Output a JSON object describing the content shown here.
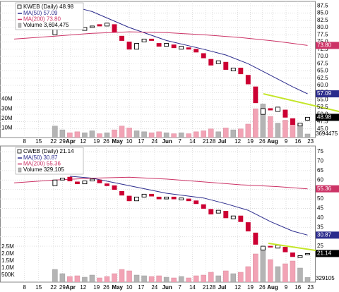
{
  "chart_data": [
    {
      "type": "candlestick",
      "title": "KWEB (Daily) 48.98",
      "volume_name": "Volume 3,694,475",
      "x": [
        5,
        6,
        7,
        8,
        9,
        10,
        11,
        12,
        13,
        14,
        15,
        16,
        17,
        18,
        19,
        20,
        21,
        22,
        23,
        24,
        25,
        26,
        27,
        28,
        29,
        30,
        31,
        32,
        33,
        34,
        35,
        36,
        37,
        38,
        39
      ],
      "open": [
        77.5,
        80.5,
        81.5,
        80,
        79,
        80,
        81,
        80.5,
        81,
        77,
        75,
        72.5,
        75,
        76,
        74.5,
        73.5,
        74,
        72.5,
        73,
        72.5,
        71,
        69,
        67.5,
        68,
        65,
        66,
        63.5,
        59.5,
        50,
        52,
        51,
        51.5,
        48.5,
        46,
        48
      ],
      "close": [
        80.5,
        81,
        80,
        79.5,
        80,
        80.5,
        80.5,
        81.5,
        78.5,
        75.5,
        72.5,
        74.5,
        76,
        75.5,
        73.5,
        74.5,
        73,
        73.5,
        72.5,
        71.5,
        69.5,
        67,
        68.5,
        65.5,
        66,
        64,
        60.5,
        54,
        52,
        51.5,
        52.5,
        49,
        46.5,
        47,
        48.98
      ],
      "volume": [
        12000000,
        8000000,
        5000000,
        6000000,
        5000000,
        7000000,
        4000000,
        5000000,
        8000000,
        12000000,
        10000000,
        7000000,
        6000000,
        5000000,
        6000000,
        5000000,
        4000000,
        5000000,
        4000000,
        6000000,
        7000000,
        9000000,
        6000000,
        10000000,
        8000000,
        9000000,
        14000000,
        30000000,
        35000000,
        22000000,
        15000000,
        18000000,
        20000000,
        14000000,
        3694475
      ],
      "up_color": "#000000",
      "down_color": "#cc0033",
      "volume_color": "#b4b4b4",
      "volume_down_color": "#f2a3b5",
      "series": [
        {
          "name": "MA(50) 57.09",
          "color": "#2b2b8c",
          "x": [
            7,
            10,
            15,
            20,
            25,
            28,
            31,
            34,
            37,
            39
          ],
          "values": [
            87.5,
            85.5,
            80,
            75.5,
            72.5,
            70.5,
            67.5,
            63.5,
            59.5,
            57.09
          ]
        },
        {
          "name": "MA(200) 73.80",
          "color": "#cc3366",
          "x": [
            -0.5,
            5,
            10,
            15,
            20,
            25,
            30,
            35,
            39
          ],
          "values": [
            76,
            77,
            78,
            78.5,
            78.2,
            77.5,
            76.5,
            75.2,
            73.8
          ]
        }
      ],
      "xlim": [
        -0.5,
        40
      ],
      "xticks": [
        {
          "value": 0.9,
          "label": "8"
        },
        {
          "value": 2.8,
          "label": "15"
        },
        {
          "value": 4.8,
          "label": "22"
        },
        {
          "value": 6.0,
          "label": "29"
        },
        {
          "value": 7.1,
          "label": "Apr"
        },
        {
          "value": 8.8,
          "label": "12"
        },
        {
          "value": 10.6,
          "label": "19"
        },
        {
          "value": 11.9,
          "label": "26"
        },
        {
          "value": 13.4,
          "label": "May"
        },
        {
          "value": 15.0,
          "label": "10"
        },
        {
          "value": 16.6,
          "label": "17"
        },
        {
          "value": 18.4,
          "label": "24"
        },
        {
          "value": 20.1,
          "label": "Jun"
        },
        {
          "value": 21.8,
          "label": "7"
        },
        {
          "value": 23.5,
          "label": "14"
        },
        {
          "value": 25.3,
          "label": "21"
        },
        {
          "value": 26.2,
          "label": "28"
        },
        {
          "value": 27.5,
          "label": "Jul"
        },
        {
          "value": 29.6,
          "label": "12"
        },
        {
          "value": 31.3,
          "label": "19"
        },
        {
          "value": 32.9,
          "label": "26"
        },
        {
          "value": 34.3,
          "label": "Aug"
        },
        {
          "value": 36.1,
          "label": "9"
        },
        {
          "value": 37.7,
          "label": "16"
        },
        {
          "value": 39.4,
          "label": "23"
        }
      ],
      "ylim": [
        42,
        89
      ],
      "yticks": [
        87.5,
        {
          "value": 85,
          "label": "85.0"
        },
        82.5,
        {
          "value": 80,
          "label": "80.0"
        },
        77.5,
        {
          "value": 75,
          "label": "75.0"
        },
        72.5,
        {
          "value": 70,
          "label": "70.0"
        },
        67.5,
        {
          "value": 65,
          "label": "65.0"
        },
        62.5,
        {
          "value": 60,
          "label": "60.0"
        },
        57.5,
        {
          "value": 55,
          "label": "55.0"
        },
        52.5,
        {
          "value": 50,
          "label": "50.0"
        },
        47.5,
        {
          "value": 45,
          "label": "45.0"
        }
      ],
      "volume_ylim": [
        0,
        50000000
      ],
      "volume_ticks": [
        {
          "value": 10000000,
          "label": "10M"
        },
        {
          "value": 20000000,
          "label": "20M"
        },
        {
          "value": 30000000,
          "label": "30M"
        },
        {
          "value": 40000000,
          "label": "40M"
        }
      ],
      "side_labels": [
        {
          "value": 73.8,
          "label": "73.80",
          "color": "#cc3366"
        },
        {
          "value": 57.09,
          "label": "57.09",
          "color": "#2b2b8c"
        },
        {
          "value": 48.98,
          "label": "48.98",
          "color": "#000000"
        }
      ],
      "volume_side_label": 3694475,
      "grid": true
    },
    {
      "type": "candlestick",
      "title": "CWEB (Daily) 21.14",
      "volume_name": "Volume 329,105",
      "x": [
        5,
        6,
        7,
        8,
        9,
        10,
        11,
        12,
        13,
        14,
        15,
        16,
        17,
        18,
        19,
        20,
        21,
        22,
        23,
        24,
        25,
        26,
        27,
        28,
        29,
        30,
        31,
        32,
        33,
        34,
        35,
        36,
        37,
        38,
        39
      ],
      "open": [
        57,
        60,
        61.5,
        59,
        58,
        59.5,
        60,
        58,
        57,
        54,
        51.5,
        49,
        51,
        52.5,
        51,
        50,
        51,
        49.5,
        50,
        49,
        47,
        44.5,
        42.5,
        43.5,
        39.5,
        41,
        37.5,
        32,
        23,
        25,
        24,
        24.5,
        21.5,
        19,
        20.5
      ],
      "close": [
        60,
        61,
        59.5,
        58,
        59.5,
        60.5,
        58.5,
        57,
        55,
        52,
        49,
        51,
        52.5,
        51.5,
        50,
        51,
        50,
        50.5,
        49,
        47.5,
        45,
        42,
        44,
        40,
        41,
        38,
        33,
        26,
        25,
        24.5,
        25.5,
        22,
        19.5,
        20,
        21.14
      ],
      "volume": [
        900000,
        600000,
        400000,
        450000,
        350000,
        500000,
        300000,
        400000,
        600000,
        900000,
        800000,
        500000,
        450000,
        400000,
        450000,
        350000,
        300000,
        400000,
        300000,
        450000,
        500000,
        700000,
        450000,
        800000,
        600000,
        700000,
        1100000,
        2000000,
        2400000,
        1600000,
        1100000,
        1300000,
        1500000,
        1000000,
        329105
      ],
      "up_color": "#000000",
      "down_color": "#cc0033",
      "volume_color": "#b4b4b4",
      "volume_down_color": "#f2a3b5",
      "series": [
        {
          "name": "MA(50) 30.87",
          "color": "#2b2b8c",
          "x": [
            7,
            10,
            15,
            20,
            25,
            28,
            31,
            34,
            37,
            39
          ],
          "values": [
            62,
            61,
            57,
            53,
            50.5,
            47.5,
            44,
            38,
            33,
            30.87
          ]
        },
        {
          "name": "MA(200) 55.36",
          "color": "#cc3366",
          "x": [
            -0.5,
            5,
            10,
            15,
            20,
            25,
            30,
            35,
            39
          ],
          "values": [
            58.5,
            60,
            61,
            61.5,
            60.5,
            59,
            57.5,
            56.5,
            55.36
          ]
        }
      ],
      "xlim": [
        -0.5,
        40
      ],
      "xticks": [
        {
          "value": 0.9,
          "label": "8"
        },
        {
          "value": 2.8,
          "label": "15"
        },
        {
          "value": 4.8,
          "label": "22"
        },
        {
          "value": 6.0,
          "label": "29"
        },
        {
          "value": 7.1,
          "label": "Apr"
        },
        {
          "value": 8.8,
          "label": "12"
        },
        {
          "value": 10.6,
          "label": "19"
        },
        {
          "value": 11.9,
          "label": "26"
        },
        {
          "value": 13.4,
          "label": "May"
        },
        {
          "value": 15.0,
          "label": "10"
        },
        {
          "value": 16.6,
          "label": "17"
        },
        {
          "value": 18.4,
          "label": "24"
        },
        {
          "value": 20.1,
          "label": "Jun"
        },
        {
          "value": 21.8,
          "label": "7"
        },
        {
          "value": 23.5,
          "label": "14"
        },
        {
          "value": 25.3,
          "label": "21"
        },
        {
          "value": 26.2,
          "label": "28"
        },
        {
          "value": 27.5,
          "label": "Jul"
        },
        {
          "value": 29.6,
          "label": "12"
        },
        {
          "value": 31.3,
          "label": "19"
        },
        {
          "value": 32.9,
          "label": "26"
        },
        {
          "value": 34.3,
          "label": "Aug"
        },
        {
          "value": 36.1,
          "label": "9"
        },
        {
          "value": 37.7,
          "label": "16"
        },
        {
          "value": 39.4,
          "label": "23"
        }
      ],
      "ylim": [
        6,
        78
      ],
      "yticks": [
        75,
        70,
        65,
        60,
        55,
        50,
        45,
        40,
        35,
        30,
        25
      ],
      "volume_ylim": [
        0,
        3000000
      ],
      "volume_ticks": [
        {
          "value": 500000,
          "label": "500K"
        },
        {
          "value": 1000000,
          "label": "1.0M"
        },
        {
          "value": 1500000,
          "label": "1.5M"
        },
        {
          "value": 2000000,
          "label": "2.0M"
        },
        {
          "value": 2500000,
          "label": "2.5M"
        }
      ],
      "side_labels": [
        {
          "value": 55.36,
          "label": "55.36",
          "color": "#cc3366"
        },
        {
          "value": 30.87,
          "label": "30.87",
          "color": "#2b2b8c"
        },
        {
          "value": 21.14,
          "label": "21.14",
          "color": "#000000"
        }
      ],
      "volume_side_label": 329105,
      "grid": true
    }
  ]
}
